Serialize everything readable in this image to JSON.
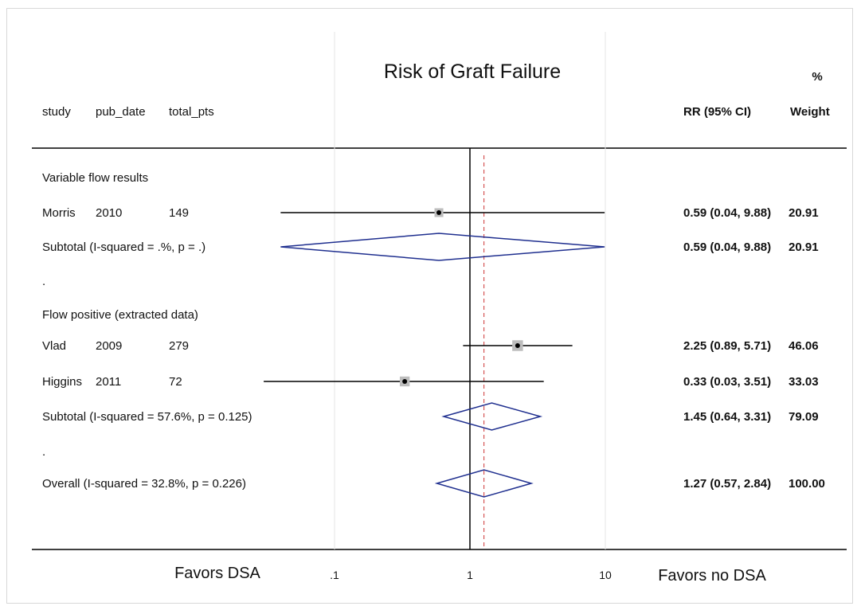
{
  "chart_data": {
    "type": "forest",
    "title": "Risk of Graft Failure",
    "header": {
      "columns": [
        "study",
        "pub_date",
        "total_pts"
      ],
      "estimate_label": "RR (95% CI)",
      "weight_label_top": "%",
      "weight_label": "Weight"
    },
    "scale": "log",
    "xlim": [
      0.01,
      30
    ],
    "ticks": [
      {
        "value": 0.1,
        "label": ".1"
      },
      {
        "value": 1,
        "label": "1"
      },
      {
        "value": 10,
        "label": "10"
      }
    ],
    "null_line": 1,
    "overall_effect": 1.27,
    "favors_left": "Favors DSA",
    "favors_right": "Favors no DSA",
    "rows": [
      {
        "kind": "group",
        "label": "Variable flow results"
      },
      {
        "kind": "study",
        "study": "Morris",
        "pub_date": "2010",
        "total_pts": "149",
        "rr": 0.59,
        "lo": 0.04,
        "hi": 9.88,
        "weight": 20.91,
        "estimate_text": "0.59 (0.04, 9.88)",
        "weight_text": "20.91"
      },
      {
        "kind": "subtotal",
        "label": "Subtotal  (I-squared = .%, p = .)",
        "rr": 0.59,
        "lo": 0.04,
        "hi": 9.88,
        "estimate_text": "0.59 (0.04, 9.88)",
        "weight_text": "20.91"
      },
      {
        "kind": "sep",
        "label": "."
      },
      {
        "kind": "group",
        "label": "Flow positive (extracted data)"
      },
      {
        "kind": "study",
        "study": "Vlad",
        "pub_date": "2009",
        "total_pts": "279",
        "rr": 2.25,
        "lo": 0.89,
        "hi": 5.71,
        "weight": 46.06,
        "estimate_text": "2.25 (0.89, 5.71)",
        "weight_text": "46.06"
      },
      {
        "kind": "study",
        "study": "Higgins",
        "pub_date": "2011",
        "total_pts": "72",
        "rr": 0.33,
        "lo": 0.03,
        "hi": 3.51,
        "weight": 33.03,
        "estimate_text": "0.33 (0.03, 3.51)",
        "weight_text": "33.03"
      },
      {
        "kind": "subtotal",
        "label": "Subtotal  (I-squared = 57.6%, p = 0.125)",
        "rr": 1.45,
        "lo": 0.64,
        "hi": 3.31,
        "estimate_text": "1.45 (0.64, 3.31)",
        "weight_text": "79.09"
      },
      {
        "kind": "sep",
        "label": "."
      },
      {
        "kind": "overall",
        "label": "Overall  (I-squared = 32.8%, p = 0.226)",
        "rr": 1.27,
        "lo": 0.57,
        "hi": 2.84,
        "estimate_text": "1.27 (0.57, 2.84)",
        "weight_text": "100.00"
      }
    ]
  },
  "colors": {
    "ci_line": "#000000",
    "diamond": "#1f2f8f",
    "weight_box": "#bdbdbd",
    "null_line": "#000000",
    "effect_line": "#cc3333",
    "grid": "#e6e6e6"
  }
}
